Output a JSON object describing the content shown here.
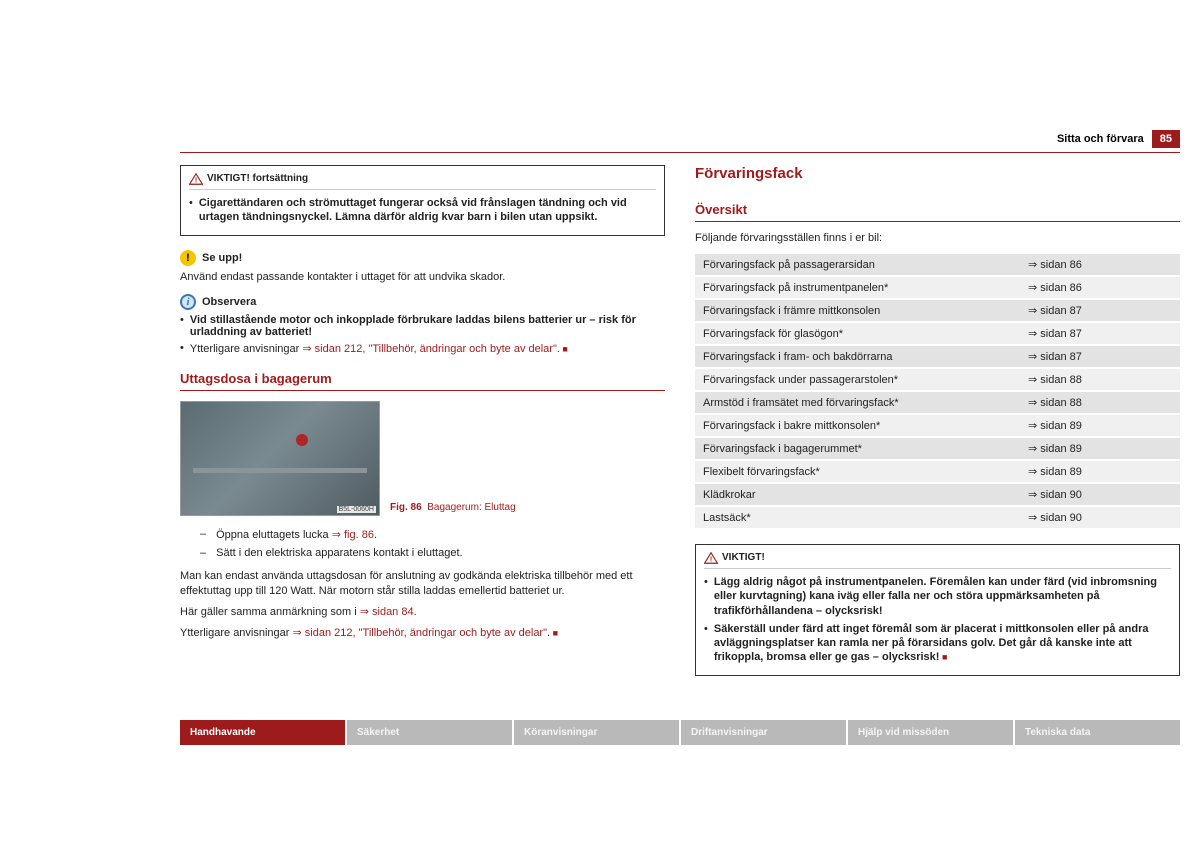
{
  "header": {
    "section_title": "Sitta och förvara",
    "page_number": "85"
  },
  "left": {
    "warn_cont_title": "VIKTIGT! fortsättning",
    "warn_cont_text": "Cigarettändaren och strömuttaget fungerar också vid frånslagen tändning och vid urtagen tändningsnyckel. Lämna därför aldrig kvar barn i bilen utan uppsikt.",
    "seupp_title": "Se upp!",
    "seupp_text": "Använd endast passande kontakter i uttaget för att undvika skador.",
    "obs_title": "Observera",
    "obs_bullet": "Vid stillastående motor och inkopplade förbrukare laddas bilens batterier ur – risk för urladdning av batteriet!",
    "obs_ref_pre": "Ytterligare anvisningar ",
    "obs_ref_link": "⇒ sidan 212, \"Tillbehör, ändringar och byte av delar\".",
    "h2": "Uttagsdosa i bagagerum",
    "fig_tag": "B5L-0060H",
    "fig_caption_lead": "Fig. 86",
    "fig_caption": "Bagagerum: Eluttag",
    "step1_pre": "Öppna eluttagets lucka ",
    "step1_link": "⇒ fig. 86",
    "step1_post": ".",
    "step2": "Sätt i den elektriska apparatens kontakt i eluttaget.",
    "para1": "Man kan endast använda uttagsdosan för anslutning av godkända elektriska tillbehör med ett effektuttag upp till 120 Watt. När motorn står stilla laddas emellertid batteriet ur.",
    "para2_pre": "Här gäller samma anmärkning som i ",
    "para2_link": "⇒ sidan 84",
    "para2_post": ".",
    "para3_pre": "Ytterligare anvisningar ",
    "para3_link": "⇒ sidan 212, \"Tillbehör, ändringar och byte av delar\"",
    "para3_post": "."
  },
  "right": {
    "h1": "Förvaringsfack",
    "h2": "Översikt",
    "intro": "Följande förvaringsställen finns i er bil:",
    "table_rows": [
      {
        "label": "Förvaringsfack på passagerarsidan",
        "ref": "sidan 86"
      },
      {
        "label": "Förvaringsfack på instrumentpanelen*",
        "ref": "sidan 86"
      },
      {
        "label": "Förvaringsfack i främre mittkonsolen",
        "ref": "sidan 87"
      },
      {
        "label": "Förvaringsfack för glasögon*",
        "ref": "sidan 87"
      },
      {
        "label": "Förvaringsfack i fram- och bakdörrarna",
        "ref": "sidan 87"
      },
      {
        "label": "Förvaringsfack under passagerarstolen*",
        "ref": "sidan 88"
      },
      {
        "label": "Armstöd i framsätet med förvaringsfack*",
        "ref": "sidan 88"
      },
      {
        "label": "Förvaringsfack i bakre mittkonsolen*",
        "ref": "sidan 89"
      },
      {
        "label": "Förvaringsfack i bagagerummet*",
        "ref": "sidan 89"
      },
      {
        "label": "Flexibelt förvaringsfack*",
        "ref": "sidan 89"
      },
      {
        "label": "Klädkrokar",
        "ref": "sidan 90"
      },
      {
        "label": "Lastsäck*",
        "ref": "sidan 90"
      }
    ],
    "warn_title": "VIKTIGT!",
    "warn_b1": "Lägg aldrig något på instrumentpanelen. Föremålen kan under färd (vid inbromsning eller kurvtagning) kana iväg eller falla ner och störa uppmärksamheten på trafikförhållandena – olycksrisk!",
    "warn_b2": "Säkerställ under färd att inget föremål som är placerat i mittkonsolen eller på andra avläggningsplatser kan ramla ner på förarsidans golv. Det går då kanske inte att frikoppla, bromsa eller ge gas – olycksrisk!"
  },
  "tabs": [
    "Handhavande",
    "Säkerhet",
    "Köranvisningar",
    "Driftanvisningar",
    "Hjälp vid missöden",
    "Tekniska data"
  ],
  "colors": {
    "brand_red": "#9e1b1b",
    "tab_gray": "#b9b9b9"
  }
}
